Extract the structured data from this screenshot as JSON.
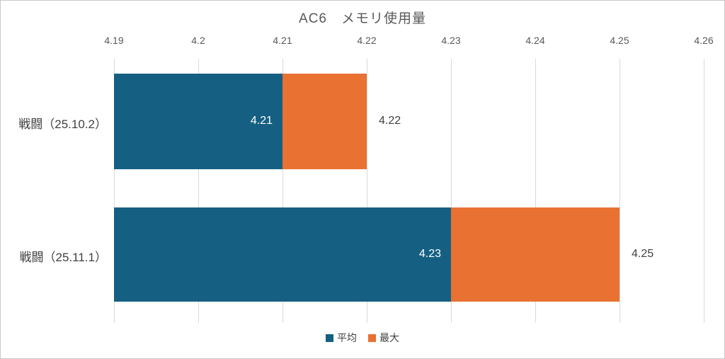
{
  "chart_data": {
    "type": "bar",
    "orientation": "horizontal",
    "title": "AC6　メモリ使用量",
    "categories": [
      "戦闘（25.10.2）",
      "戦闘（25.11.1）"
    ],
    "series": [
      {
        "name": "平均",
        "color": "#156082",
        "values": [
          4.21,
          4.23
        ],
        "labels": [
          "4.21",
          "4.23"
        ],
        "label_position": "inside-end",
        "label_color": "#ffffff"
      },
      {
        "name": "最大",
        "color": "#e97132",
        "values": [
          4.22,
          4.25
        ],
        "labels": [
          "4.22",
          "4.25"
        ],
        "label_position": "outside-end",
        "label_color": "#404040",
        "rendered_from_series": "平均"
      }
    ],
    "x_axis": {
      "min": 4.19,
      "max": 4.26,
      "tick_step": 0.01,
      "tick_labels": [
        "4.19",
        "4.2",
        "4.21",
        "4.22",
        "4.23",
        "4.24",
        "4.25",
        "4.26"
      ],
      "position": "top",
      "tick_color": "#595959"
    },
    "gridlines": {
      "visible": true,
      "direction": "vertical",
      "color": "#d9d9d9"
    },
    "legend": {
      "position": "bottom",
      "entries": [
        {
          "label": "平均",
          "color": "#156082"
        },
        {
          "label": "最大",
          "color": "#e97132"
        }
      ]
    },
    "colors": {
      "title": "#595959",
      "tick_labels": "#595959",
      "category_labels": "#404040",
      "background": "#ffffff",
      "frame_border": "#c9c9c9"
    }
  }
}
